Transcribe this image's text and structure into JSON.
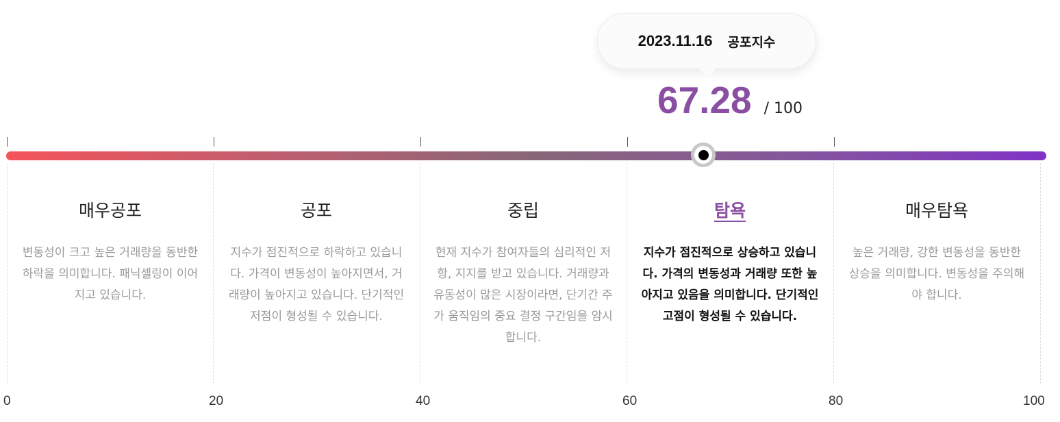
{
  "tooltip": {
    "date": "2023.11.16",
    "label": "공포지수"
  },
  "score": {
    "value": "67.28",
    "max": "/ 100",
    "level": 67.28
  },
  "colors": {
    "accent": "#8a4ea3",
    "gradient_start": "#f4545a",
    "gradient_end": "#8033c6"
  },
  "categories": [
    {
      "title": "매우공포",
      "desc": "변동성이 크고 높은 거래량을 동반한 하락을 의미합니다. 패닉셀링이 이어지고 있습니다.",
      "active": false
    },
    {
      "title": "공포",
      "desc": "지수가 점진적으로 하락하고 있습니다. 가격이 변동성이 높아지면서, 거래량이 높아지고 있습니다. 단기적인 저점이 형성될 수 있습니다.",
      "active": false
    },
    {
      "title": "중립",
      "desc": "현재 지수가 참여자들의 심리적인 저항, 지지를 받고 있습니다. 거래량과 유동성이 많은 시장이라면, 단기간 주가 움직임의 중요 결정 구간임을 암시합니다.",
      "active": false
    },
    {
      "title": "탐욕",
      "desc": "지수가 점진적으로 상승하고 있습니다. 가격의 변동성과 거래량 또한 높아지고 있음을 의미합니다. 단기적인 고점이 형성될 수 있습니다.",
      "active": true
    },
    {
      "title": "매우탐욕",
      "desc": "높은 거래량, 강한 변동성을 동반한 상승을 의미합니다. 변동성을 주의해야 합니다.",
      "active": false
    }
  ],
  "axis": [
    "0",
    "20",
    "40",
    "60",
    "80",
    "100"
  ]
}
